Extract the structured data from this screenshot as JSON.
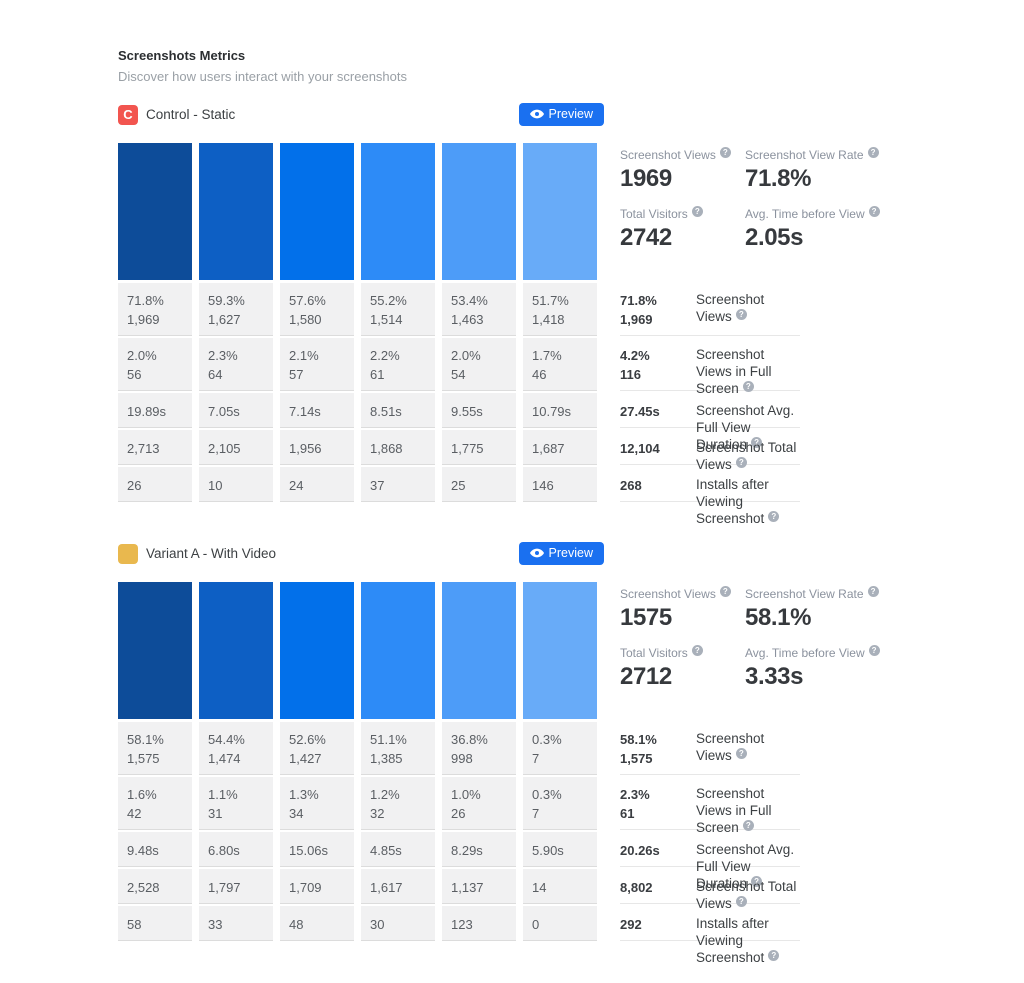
{
  "header": {
    "title": "Screenshots Metrics",
    "subtitle": "Discover how users interact with your screenshots"
  },
  "preview_button": {
    "label": "Preview"
  },
  "icons": {
    "help_glyph": "?",
    "eye": "eye-icon"
  },
  "colors": {
    "accent": "#1a70f0",
    "control_badge": "#f2554f",
    "variant_a_badge": "#e9b84e",
    "bar_colors": [
      "#0d4c99",
      "#0d5fc4",
      "#0270ea",
      "#2d8bf7",
      "#4d9cf8",
      "#68abf8"
    ]
  },
  "variants": [
    {
      "badge": {
        "label": "C",
        "color": "#f2554f"
      },
      "name": "Control - Static",
      "stats": [
        {
          "label": "Screenshot Views",
          "value": "1969"
        },
        {
          "label": "Screenshot View Rate",
          "value": "71.8%"
        },
        {
          "label": "Total Visitors",
          "value": "2742"
        },
        {
          "label": "Avg. Time before View",
          "value": "2.05s"
        }
      ],
      "rows": [
        {
          "label": "Screenshot Views",
          "cells": [
            [
              "71.8%",
              "1,969"
            ],
            [
              "59.3%",
              "1,627"
            ],
            [
              "57.6%",
              "1,580"
            ],
            [
              "55.2%",
              "1,514"
            ],
            [
              "53.4%",
              "1,463"
            ],
            [
              "51.7%",
              "1,418"
            ]
          ],
          "total": [
            "71.8%",
            "1,969"
          ]
        },
        {
          "label": "Screenshot Views in Full Screen",
          "cells": [
            [
              "2.0%",
              "56"
            ],
            [
              "2.3%",
              "64"
            ],
            [
              "2.1%",
              "57"
            ],
            [
              "2.2%",
              "61"
            ],
            [
              "2.0%",
              "54"
            ],
            [
              "1.7%",
              "46"
            ]
          ],
          "total": [
            "4.2%",
            "116"
          ]
        },
        {
          "label": "Screenshot Avg. Full View Duration",
          "cells": [
            [
              "19.89s"
            ],
            [
              "7.05s"
            ],
            [
              "7.14s"
            ],
            [
              "8.51s"
            ],
            [
              "9.55s"
            ],
            [
              "10.79s"
            ]
          ],
          "total": [
            "27.45s"
          ]
        },
        {
          "label": "Screenshot Total Views",
          "cells": [
            [
              "2,713"
            ],
            [
              "2,105"
            ],
            [
              "1,956"
            ],
            [
              "1,868"
            ],
            [
              "1,775"
            ],
            [
              "1,687"
            ]
          ],
          "total": [
            "12,104"
          ]
        },
        {
          "label": "Installs after Viewing Screenshot",
          "cells": [
            [
              "26"
            ],
            [
              "10"
            ],
            [
              "24"
            ],
            [
              "37"
            ],
            [
              "25"
            ],
            [
              "146"
            ]
          ],
          "total": [
            "268"
          ]
        }
      ]
    },
    {
      "badge": {
        "label": "",
        "color": "#e9b84e"
      },
      "name": "Variant A - With Video",
      "stats": [
        {
          "label": "Screenshot Views",
          "value": "1575"
        },
        {
          "label": "Screenshot View Rate",
          "value": "58.1%"
        },
        {
          "label": "Total Visitors",
          "value": "2712"
        },
        {
          "label": "Avg. Time before View",
          "value": "3.33s"
        }
      ],
      "rows": [
        {
          "label": "Screenshot Views",
          "cells": [
            [
              "58.1%",
              "1,575"
            ],
            [
              "54.4%",
              "1,474"
            ],
            [
              "52.6%",
              "1,427"
            ],
            [
              "51.1%",
              "1,385"
            ],
            [
              "36.8%",
              "998"
            ],
            [
              "0.3%",
              "7"
            ]
          ],
          "total": [
            "58.1%",
            "1,575"
          ]
        },
        {
          "label": "Screenshot Views in Full Screen",
          "cells": [
            [
              "1.6%",
              "42"
            ],
            [
              "1.1%",
              "31"
            ],
            [
              "1.3%",
              "34"
            ],
            [
              "1.2%",
              "32"
            ],
            [
              "1.0%",
              "26"
            ],
            [
              "0.3%",
              "7"
            ]
          ],
          "total": [
            "2.3%",
            "61"
          ]
        },
        {
          "label": "Screenshot Avg. Full View Duration",
          "cells": [
            [
              "9.48s"
            ],
            [
              "6.80s"
            ],
            [
              "15.06s"
            ],
            [
              "4.85s"
            ],
            [
              "8.29s"
            ],
            [
              "5.90s"
            ]
          ],
          "total": [
            "20.26s"
          ]
        },
        {
          "label": "Screenshot Total Views",
          "cells": [
            [
              "2,528"
            ],
            [
              "1,797"
            ],
            [
              "1,709"
            ],
            [
              "1,617"
            ],
            [
              "1,137"
            ],
            [
              "14"
            ]
          ],
          "total": [
            "8,802"
          ]
        },
        {
          "label": "Installs after Viewing Screenshot",
          "cells": [
            [
              "58"
            ],
            [
              "33"
            ],
            [
              "48"
            ],
            [
              "30"
            ],
            [
              "123"
            ],
            [
              "0"
            ]
          ],
          "total": [
            "292"
          ]
        }
      ]
    }
  ]
}
